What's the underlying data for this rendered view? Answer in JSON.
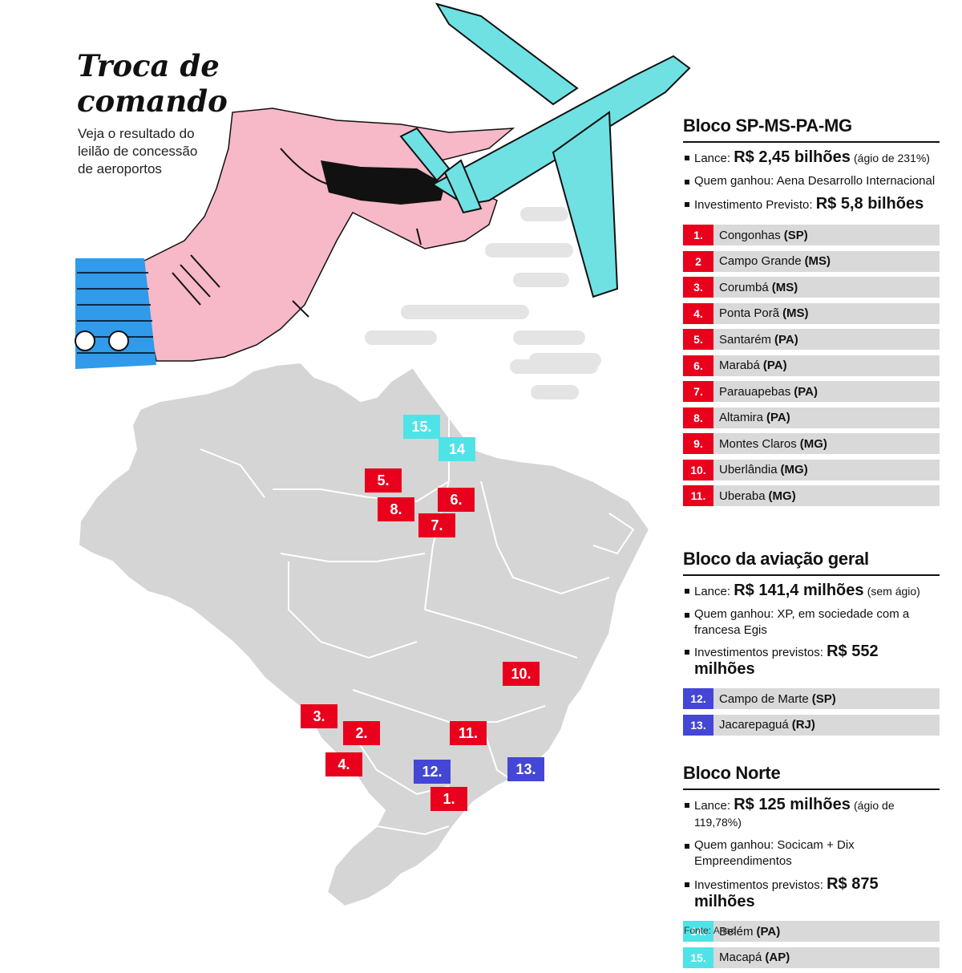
{
  "title": {
    "line1": "Troca de",
    "line2": "comando"
  },
  "subtitle": "Veja o resultado do leilão de concessão de aeroportos",
  "colors": {
    "red": "#e8001c",
    "blue": "#4446d6",
    "cyan": "#4fe3e8",
    "map_gray": "#d5d5d5",
    "hand_pink": "#f7b8c8",
    "plane_cyan": "#6fe1e3",
    "sleeve_blue": "#2f9bea"
  },
  "blocks": [
    {
      "title": "Bloco SP-MS-PA-MG",
      "bid_label": "Lance:",
      "bid_value": "R$ 2,45 bilhões",
      "bid_note": "(ágio de 231%)",
      "winner": "Quem ganhou: Aena Desarrollo Internacional",
      "investment_label": "Investimento Previsto:",
      "investment_value": "R$ 5,8 bilhões",
      "airports": [
        {
          "num": "1.",
          "name": "Congonhas",
          "state": "(SP)"
        },
        {
          "num": "2",
          "name": "Campo Grande",
          "state": "(MS)"
        },
        {
          "num": "3.",
          "name": "Corumbá",
          "state": "(MS)"
        },
        {
          "num": "4.",
          "name": "Ponta Porã",
          "state": "(MS)"
        },
        {
          "num": "5.",
          "name": "Santarém",
          "state": "(PA)"
        },
        {
          "num": "6.",
          "name": "Marabá",
          "state": "(PA)"
        },
        {
          "num": "7.",
          "name": "Parauapebas",
          "state": "(PA)"
        },
        {
          "num": "8.",
          "name": "Altamira",
          "state": "(PA)"
        },
        {
          "num": "9.",
          "name": "Montes Claros",
          "state": "(MG)"
        },
        {
          "num": "10.",
          "name": "Uberlândia",
          "state": "(MG)"
        },
        {
          "num": "11.",
          "name": "Uberaba",
          "state": "(MG)"
        }
      ]
    },
    {
      "title": "Bloco da aviação geral",
      "bid_label": "Lance:",
      "bid_value": "R$ 141,4 milhões",
      "bid_note": "(sem ágio)",
      "winner": "Quem ganhou: XP, em sociedade com a francesa Egis",
      "investment_label": "Investimentos previstos:",
      "investment_value": "R$ 552 milhões",
      "airports": [
        {
          "num": "12.",
          "name": "Campo de Marte",
          "state": "(SP)"
        },
        {
          "num": "13.",
          "name": "Jacarepaguá",
          "state": "(RJ)"
        }
      ]
    },
    {
      "title": "Bloco Norte",
      "bid_label": "Lance:",
      "bid_value": "R$ 125 milhões",
      "bid_note": "(ágio de 119,78%)",
      "winner": "Quem ganhou: Socicam + Dix Empreendimentos",
      "investment_label": "Investimentos previstos:",
      "investment_value": "R$ 875 milhões",
      "airports": [
        {
          "num": "14.",
          "name": "Belém",
          "state": "(PA)"
        },
        {
          "num": "15.",
          "name": "Macapá",
          "state": "(AP)"
        }
      ]
    }
  ],
  "map_markers": [
    {
      "label": "15.",
      "color": "cyan"
    },
    {
      "label": "14",
      "color": "cyan"
    },
    {
      "label": "5.",
      "color": "red"
    },
    {
      "label": "8.",
      "color": "red"
    },
    {
      "label": "6.",
      "color": "red"
    },
    {
      "label": "7.",
      "color": "red"
    },
    {
      "label": "10.",
      "color": "red"
    },
    {
      "label": "3.",
      "color": "red"
    },
    {
      "label": "2.",
      "color": "red"
    },
    {
      "label": "11.",
      "color": "red"
    },
    {
      "label": "4.",
      "color": "red"
    },
    {
      "label": "12.",
      "color": "blue"
    },
    {
      "label": "13.",
      "color": "blue"
    },
    {
      "label": "1.",
      "color": "red"
    }
  ],
  "source": "Fonte: Anac"
}
